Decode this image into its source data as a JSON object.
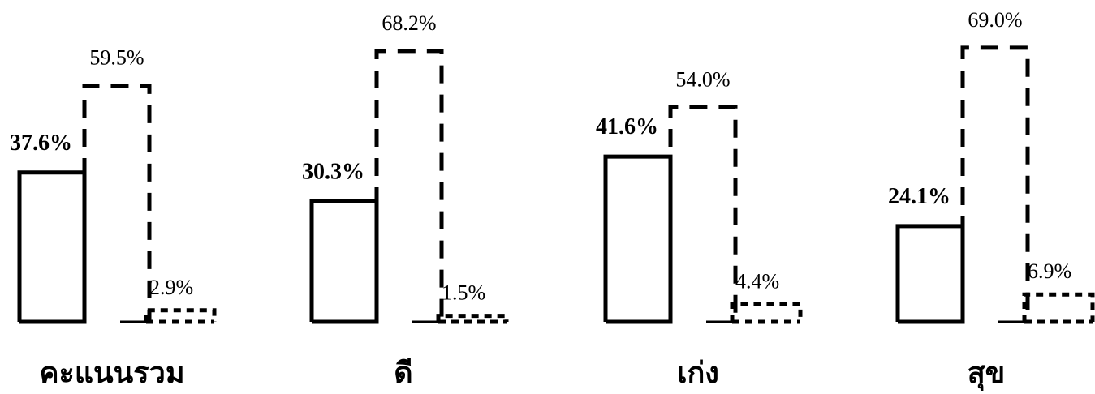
{
  "chart_data": {
    "type": "bar",
    "categories": [
      "คะแนนรวม",
      "ดี",
      "เก่ง",
      "สุข"
    ],
    "series": [
      {
        "style": "solid",
        "values": [
          37.6,
          30.3,
          41.6,
          24.1
        ],
        "labels": [
          "37.6%",
          "30.3%",
          "41.6%",
          "24.1%"
        ]
      },
      {
        "style": "dashed",
        "values": [
          59.5,
          68.2,
          54.0,
          69.0
        ],
        "labels": [
          "59.5%",
          "68.2%",
          "54.0%",
          "69.0%"
        ]
      },
      {
        "style": "dotted",
        "values": [
          2.9,
          1.5,
          4.4,
          6.9
        ],
        "labels": [
          "2.9%",
          "1.5%",
          "4.4%",
          "6.9%"
        ]
      }
    ],
    "ylim": [
      0,
      69
    ],
    "grid": false,
    "title": "",
    "xlabel": "",
    "ylabel": "",
    "colors": {
      "stroke": "#000000",
      "background": "#ffffff"
    }
  }
}
